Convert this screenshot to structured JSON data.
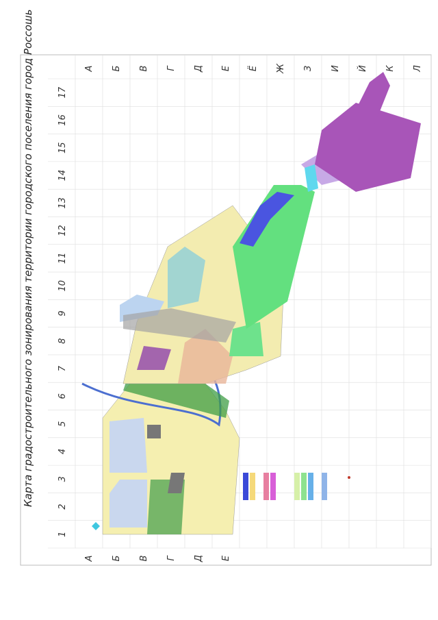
{
  "title": "Карта градостроительного зонирования территории городского поселения город Россошь",
  "columns": [
    "А",
    "Б",
    "В",
    "Г",
    "Д",
    "Е",
    "Ё",
    "Ж",
    "З",
    "И",
    "Й",
    "К",
    "Л"
  ],
  "rows": [
    1,
    2,
    3,
    4,
    5,
    6,
    7,
    8,
    9,
    10,
    11,
    12,
    13,
    14,
    15,
    16,
    17
  ]
}
